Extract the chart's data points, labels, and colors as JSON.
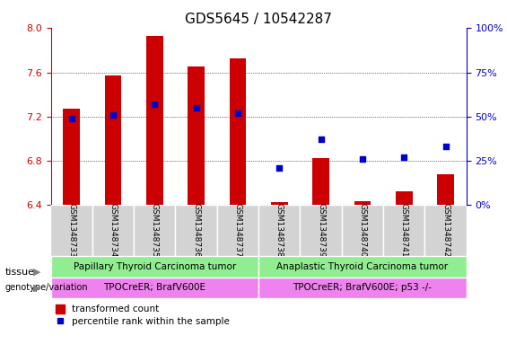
{
  "title": "GDS5645 / 10542287",
  "samples": [
    "GSM1348733",
    "GSM1348734",
    "GSM1348735",
    "GSM1348736",
    "GSM1348737",
    "GSM1348738",
    "GSM1348739",
    "GSM1348740",
    "GSM1348741",
    "GSM1348742"
  ],
  "transformed_count": [
    7.27,
    7.57,
    7.93,
    7.65,
    7.73,
    6.42,
    6.82,
    6.43,
    6.52,
    6.68
  ],
  "percentile_rank": [
    49,
    51,
    57,
    55,
    52,
    21,
    37,
    26,
    27,
    33
  ],
  "ylim_left": [
    6.4,
    8.0
  ],
  "ylim_right": [
    0,
    100
  ],
  "yticks_left": [
    6.4,
    6.8,
    7.2,
    7.6,
    8.0
  ],
  "yticks_right": [
    0,
    25,
    50,
    75,
    100
  ],
  "bar_color": "#cc0000",
  "dot_color": "#0000cc",
  "grid_color": "#000000",
  "tissue_group1_label": "Papillary Thyroid Carcinoma tumor",
  "tissue_group2_label": "Anaplastic Thyroid Carcinoma tumor",
  "tissue_color": "#90ee90",
  "genotype_group1_label": "TPOCreER; BrafV600E",
  "genotype_group2_label": "TPOCreER; BrafV600E; p53 -/-",
  "genotype_color": "#ee82ee",
  "group1_count": 5,
  "group2_count": 5,
  "legend_bar_label": "transformed count",
  "legend_dot_label": "percentile rank within the sample",
  "xlabel_color_left": "#cc0000",
  "xlabel_color_right": "#0000cc",
  "tick_label_bg": "#d3d3d3"
}
